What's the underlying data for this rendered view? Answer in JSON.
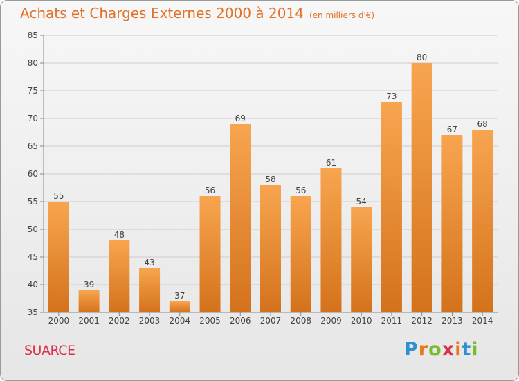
{
  "header": {
    "title": "Achats et Charges Externes 2000 à 2014",
    "subtitle": "(en milliers d'€)"
  },
  "footer": {
    "commune": "SUARCE",
    "brand_letters": [
      "P",
      "r",
      "o",
      "x",
      "i",
      "t",
      "i"
    ],
    "brand_colors": [
      "#2e8fd3",
      "#e8781d",
      "#7abb2e",
      "#d9314c",
      "#e8781d",
      "#2e8fd3",
      "#7abb2e"
    ]
  },
  "colors": {
    "bar_top": "#f8a54f",
    "bar_bottom": "#d4721c",
    "grid": "#cccccc",
    "axis_text": "#444444"
  },
  "chart_data": {
    "type": "bar",
    "title": "Achats et Charges Externes 2000 à 2014",
    "subtitle": "(en milliers d'€)",
    "categories": [
      "2000",
      "2001",
      "2002",
      "2003",
      "2004",
      "2005",
      "2006",
      "2007",
      "2008",
      "2009",
      "2010",
      "2011",
      "2012",
      "2013",
      "2014"
    ],
    "values": [
      55,
      39,
      48,
      43,
      37,
      56,
      69,
      58,
      56,
      61,
      54,
      73,
      80,
      67,
      68
    ],
    "ylim": [
      35,
      85
    ],
    "yticks": [
      35,
      40,
      45,
      50,
      55,
      60,
      65,
      70,
      75,
      80,
      85
    ],
    "grid": true
  }
}
